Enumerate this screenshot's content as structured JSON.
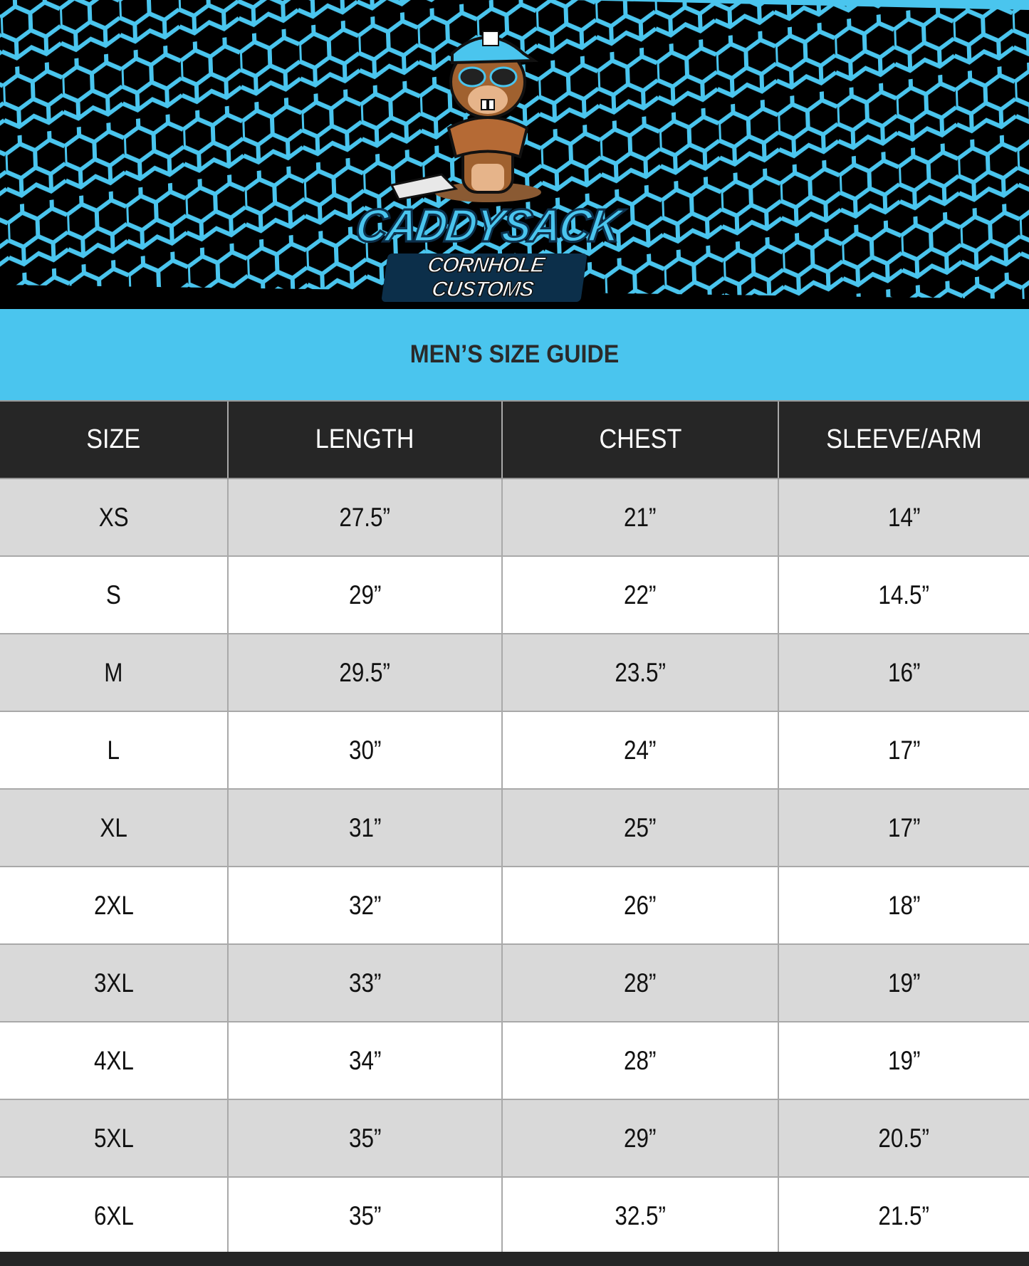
{
  "brand": {
    "logo_line1": "CADDYSACK",
    "logo_line2": "CORNHOLE CUSTOMS",
    "colors": {
      "accent": "#4ac5ee",
      "header_bg": "#262626",
      "row_shade": "#d9d9d9"
    }
  },
  "title": "MEN’S SIZE GUIDE",
  "table": {
    "headers": [
      "SIZE",
      "LENGTH",
      "CHEST",
      "SLEEVE/ARM"
    ],
    "rows": [
      [
        "XS",
        "27.5”",
        "21”",
        "14”"
      ],
      [
        "S",
        "29”",
        "22”",
        "14.5”"
      ],
      [
        "M",
        "29.5”",
        "23.5”",
        "16”"
      ],
      [
        "L",
        "30”",
        "24”",
        "17”"
      ],
      [
        "XL",
        "31”",
        "25”",
        "17”"
      ],
      [
        "2XL",
        "32”",
        "26”",
        "18”"
      ],
      [
        "3XL",
        "33”",
        "28”",
        "19”"
      ],
      [
        "4XL",
        "34”",
        "28”",
        "19”"
      ],
      [
        "5XL",
        "35”",
        "29”",
        "20.5”"
      ],
      [
        "6XL",
        "35”",
        "32.5”",
        "21.5”"
      ]
    ]
  }
}
